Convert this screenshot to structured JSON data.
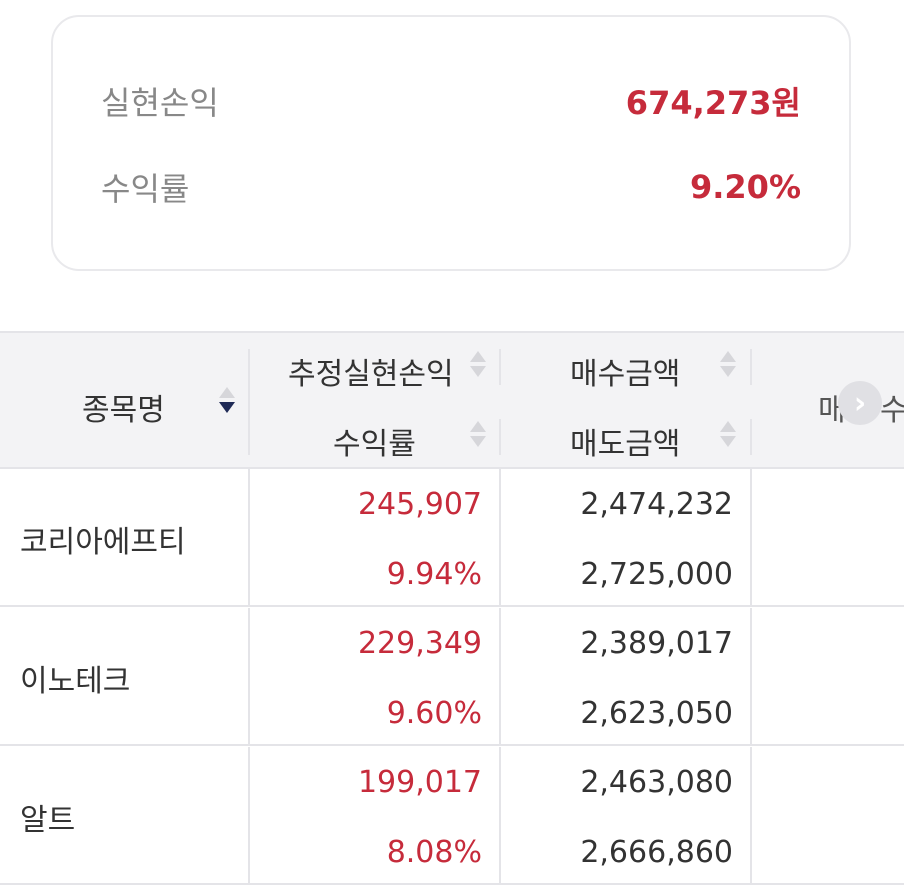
{
  "summary": {
    "realized_pl_label": "실현손익",
    "realized_pl_value": "674,273원",
    "return_label": "수익률",
    "return_value": "9.20%"
  },
  "table": {
    "headers": {
      "name": "종목명",
      "est_realized_pl": "추정실현손익",
      "return_rate": "수익률",
      "buy_amount": "매수금액",
      "sell_amount": "매도금액",
      "col4_top_partial": "매",
      "col4_bottom_partial": "수"
    },
    "rows": [
      {
        "name": "코리아에프티",
        "pl": "245,907",
        "rate": "9.94%",
        "buy": "2,474,232",
        "sell": "2,725,000"
      },
      {
        "name": "이노테크",
        "pl": "229,349",
        "rate": "9.60%",
        "buy": "2,389,017",
        "sell": "2,623,050"
      },
      {
        "name": "알트",
        "pl": "199,017",
        "rate": "8.08%",
        "buy": "2,463,080",
        "sell": "2,666,860"
      }
    ]
  },
  "icons": {
    "sort": "sort-arrows-icon",
    "scroll_right": "chevron-right-icon"
  },
  "colors": {
    "profit": "#c62b3b",
    "sort_active": "#1f2a56"
  }
}
